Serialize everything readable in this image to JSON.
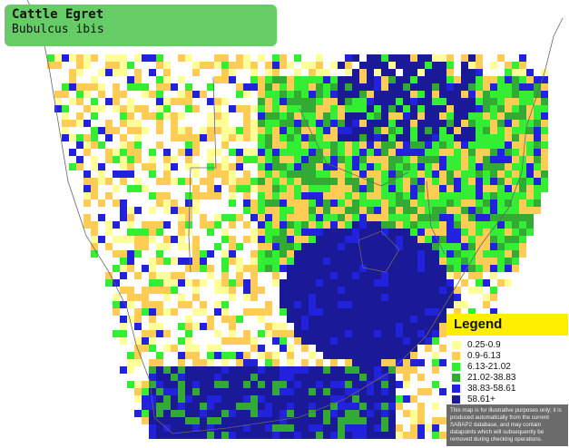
{
  "title": {
    "common_name": "Cattle Egret",
    "scientific_name": "Bubulcus ibis"
  },
  "legend": {
    "heading": "Legend",
    "items": [
      {
        "label": "0.25-0.9",
        "color": "#ffff99"
      },
      {
        "label": "0.9-6.13",
        "color": "#ffcc55"
      },
      {
        "label": "6.13-21.02",
        "color": "#33ee33"
      },
      {
        "label": "21.02-38.83",
        "color": "#33aa33"
      },
      {
        "label": "38.83-58.61",
        "color": "#2222dd"
      },
      {
        "label": "58.61+",
        "color": "#1a1a99"
      }
    ],
    "disclaimer": "This map is for illustrative purposes only; it is produced automatically from the current SABAP2 database, and may contain datapoints which will subsequently be removed during checking operations."
  }
}
